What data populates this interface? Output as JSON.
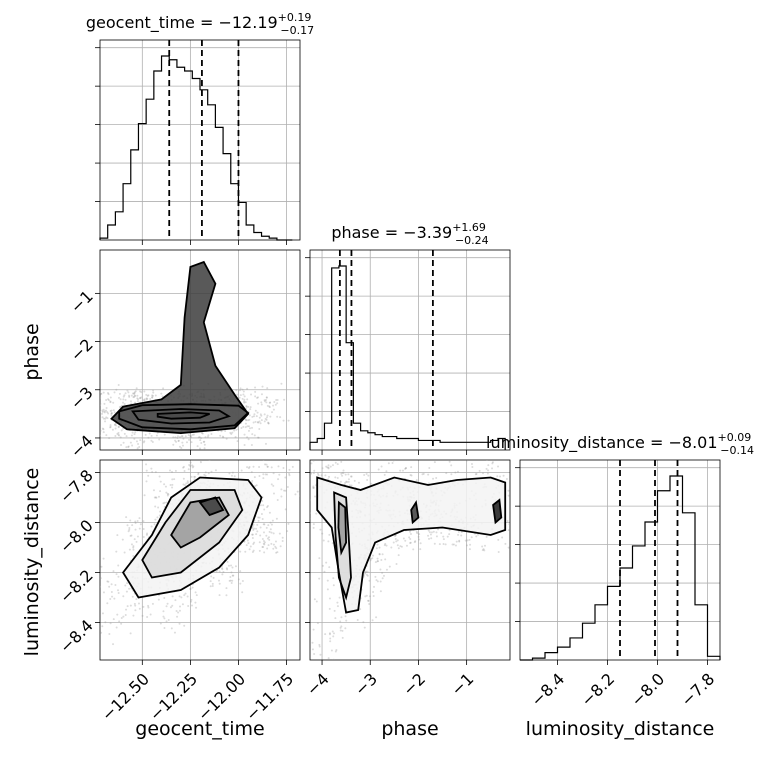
{
  "chart_data": {
    "type": "corner",
    "parameters": [
      "geocent_time",
      "phase",
      "luminosity_distance"
    ],
    "titles": [
      {
        "name": "geocent_time",
        "median": "−12.19",
        "plus": "+0.19",
        "minus": "−0.17"
      },
      {
        "name": "phase",
        "median": "−3.39",
        "plus": "+1.69",
        "minus": "−0.24"
      },
      {
        "name": "luminosity_distance",
        "median": "−8.01",
        "plus": "+0.09",
        "minus": "−0.14"
      }
    ],
    "axis_labels": {
      "x": [
        "geocent_time",
        "phase",
        "luminosity_distance"
      ],
      "y": [
        "phase",
        "luminosity_distance"
      ]
    },
    "ranges": {
      "geocent_time": [
        -12.72,
        -11.68
      ],
      "phase": [
        -4.25,
        -0.1
      ],
      "luminosity_distance": [
        -8.55,
        -7.75
      ]
    },
    "ticks": {
      "geocent_time": {
        "values": [
          -12.5,
          -12.25,
          -12.0,
          -11.75
        ],
        "labels": [
          "−12.50",
          "−12.25",
          "−12.00",
          "−11.75"
        ]
      },
      "phase": {
        "values": [
          -4,
          -3,
          -2,
          -1
        ],
        "labels": [
          "−4",
          "−3",
          "−2",
          "−1"
        ]
      },
      "luminosity_distance": {
        "values": [
          -8.4,
          -8.2,
          -8.0,
          -7.8
        ],
        "labels": [
          "−8.4",
          "−8.2",
          "−8.0",
          "−7.8"
        ]
      }
    },
    "histograms": {
      "geocent_time": {
        "edges": [
          -12.72,
          -12.68,
          -12.64,
          -12.6,
          -12.56,
          -12.52,
          -12.48,
          -12.44,
          -12.4,
          -12.36,
          -12.32,
          -12.28,
          -12.24,
          -12.2,
          -12.16,
          -12.12,
          -12.08,
          -12.04,
          -12.0,
          -11.96,
          -11.92,
          -11.88,
          -11.84,
          -11.8,
          -11.76,
          -11.72
        ],
        "counts": [
          0.01,
          0.08,
          0.15,
          0.3,
          0.48,
          0.62,
          0.75,
          0.9,
          0.98,
          0.96,
          0.92,
          0.9,
          0.86,
          0.8,
          0.72,
          0.6,
          0.46,
          0.3,
          0.2,
          0.08,
          0.04,
          0.02,
          0.01,
          0.0,
          0.0
        ],
        "quantiles": [
          -12.36,
          -12.19,
          -12.0
        ]
      },
      "phase": {
        "edges": [
          -4.25,
          -4.1,
          -3.95,
          -3.8,
          -3.65,
          -3.5,
          -3.35,
          -3.2,
          -3.05,
          -2.9,
          -2.75,
          -2.6,
          -2.45,
          -2.3,
          -2.15,
          -2.0,
          -1.85,
          -1.7,
          -1.55,
          -1.4,
          -1.25,
          -1.1,
          -0.95,
          -0.8,
          -0.65,
          -0.5,
          -0.35,
          -0.2
        ],
        "counts": [
          0.04,
          0.06,
          0.14,
          0.95,
          0.96,
          0.56,
          0.14,
          0.1,
          0.09,
          0.08,
          0.07,
          0.07,
          0.06,
          0.06,
          0.06,
          0.05,
          0.05,
          0.05,
          0.04,
          0.04,
          0.04,
          0.04,
          0.04,
          0.04,
          0.04,
          0.05,
          0.06
        ],
        "quantiles": [
          -3.63,
          -3.39,
          -1.7
        ]
      },
      "luminosity_distance": {
        "edges": [
          -8.55,
          -8.5,
          -8.45,
          -8.4,
          -8.35,
          -8.3,
          -8.25,
          -8.2,
          -8.15,
          -8.1,
          -8.05,
          -8.0,
          -7.95,
          -7.9,
          -7.85,
          -7.8,
          -7.75
        ],
        "counts": [
          0.0,
          0.01,
          0.04,
          0.07,
          0.12,
          0.2,
          0.3,
          0.4,
          0.5,
          0.62,
          0.75,
          0.92,
          1.0,
          0.8,
          0.3,
          0.02
        ],
        "quantiles": [
          -8.15,
          -8.01,
          -7.92
        ]
      }
    },
    "density_2d": [
      {
        "x": "geocent_time",
        "y": "phase",
        "contours": [
          [
            [
              -12.62,
              -3.45
            ],
            [
              -12.5,
              -3.32
            ],
            [
              -12.25,
              -3.3
            ],
            [
              -12.0,
              -3.33
            ],
            [
              -11.95,
              -3.48
            ],
            [
              -12.02,
              -3.74
            ],
            [
              -12.25,
              -3.82
            ],
            [
              -12.5,
              -3.78
            ],
            [
              -12.62,
              -3.6
            ]
          ],
          [
            [
              -12.55,
              -3.45
            ],
            [
              -12.3,
              -3.4
            ],
            [
              -12.1,
              -3.43
            ],
            [
              -12.05,
              -3.55
            ],
            [
              -12.15,
              -3.68
            ],
            [
              -12.35,
              -3.7
            ],
            [
              -12.52,
              -3.62
            ]
          ],
          [
            [
              -12.42,
              -3.5
            ],
            [
              -12.25,
              -3.47
            ],
            [
              -12.15,
              -3.5
            ],
            [
              -12.2,
              -3.58
            ],
            [
              -12.35,
              -3.6
            ],
            [
              -12.42,
              -3.56
            ]
          ],
          [
            [
              -12.6,
              -3.35
            ],
            [
              -12.4,
              -3.2
            ],
            [
              -12.3,
              -2.9
            ],
            [
              -12.28,
              -1.5
            ],
            [
              -12.25,
              -0.45
            ],
            [
              -12.18,
              -0.35
            ],
            [
              -12.12,
              -0.8
            ],
            [
              -12.18,
              -1.6
            ],
            [
              -12.12,
              -2.5
            ],
            [
              -12.02,
              -3.1
            ],
            [
              -11.95,
              -3.5
            ],
            [
              -12.02,
              -3.8
            ],
            [
              -12.3,
              -3.9
            ],
            [
              -12.58,
              -3.82
            ],
            [
              -12.66,
              -3.6
            ]
          ]
        ]
      },
      {
        "x": "geocent_time",
        "y": "luminosity_distance",
        "contours": [
          [
            [
              -12.6,
              -8.2
            ],
            [
              -12.45,
              -8.05
            ],
            [
              -12.35,
              -7.9
            ],
            [
              -12.2,
              -7.82
            ],
            [
              -11.95,
              -7.83
            ],
            [
              -11.88,
              -7.9
            ],
            [
              -11.95,
              -8.05
            ],
            [
              -12.1,
              -8.18
            ],
            [
              -12.3,
              -8.27
            ],
            [
              -12.52,
              -8.3
            ]
          ],
          [
            [
              -12.5,
              -8.15
            ],
            [
              -12.38,
              -8.0
            ],
            [
              -12.25,
              -7.87
            ],
            [
              -12.02,
              -7.87
            ],
            [
              -11.98,
              -7.95
            ],
            [
              -12.1,
              -8.08
            ],
            [
              -12.3,
              -8.2
            ],
            [
              -12.45,
              -8.22
            ]
          ],
          [
            [
              -12.35,
              -8.05
            ],
            [
              -12.25,
              -7.92
            ],
            [
              -12.1,
              -7.9
            ],
            [
              -12.05,
              -7.97
            ],
            [
              -12.2,
              -8.06
            ],
            [
              -12.3,
              -8.1
            ]
          ],
          [
            [
              -12.2,
              -7.92
            ],
            [
              -12.12,
              -7.9
            ],
            [
              -12.08,
              -7.95
            ],
            [
              -12.15,
              -7.97
            ]
          ]
        ]
      },
      {
        "x": "phase",
        "y": "luminosity_distance",
        "contours": [
          [
            [
              -4.1,
              -7.82
            ],
            [
              -3.6,
              -7.85
            ],
            [
              -3.2,
              -7.87
            ],
            [
              -2.5,
              -7.82
            ],
            [
              -1.8,
              -7.85
            ],
            [
              -1.2,
              -7.83
            ],
            [
              -0.5,
              -7.82
            ],
            [
              -0.2,
              -7.84
            ],
            [
              -0.2,
              -8.03
            ],
            [
              -0.5,
              -8.05
            ],
            [
              -1.5,
              -8.02
            ],
            [
              -2.3,
              -8.03
            ],
            [
              -2.9,
              -8.08
            ],
            [
              -3.15,
              -8.2
            ],
            [
              -3.25,
              -8.35
            ],
            [
              -3.5,
              -8.36
            ],
            [
              -3.65,
              -8.2
            ],
            [
              -3.8,
              -8.02
            ],
            [
              -4.1,
              -7.95
            ]
          ],
          [
            [
              -3.75,
              -7.88
            ],
            [
              -3.5,
              -7.9
            ],
            [
              -3.45,
              -8.05
            ],
            [
              -3.4,
              -8.22
            ],
            [
              -3.5,
              -8.3
            ],
            [
              -3.65,
              -8.22
            ],
            [
              -3.72,
              -8.05
            ]
          ],
          [
            [
              -3.65,
              -7.92
            ],
            [
              -3.52,
              -7.94
            ],
            [
              -3.5,
              -8.08
            ],
            [
              -3.6,
              -8.12
            ],
            [
              -3.66,
              -8.02
            ]
          ],
          [
            [
              -2.15,
              -7.95
            ],
            [
              -2.05,
              -7.92
            ],
            [
              -2.0,
              -7.98
            ],
            [
              -2.12,
              -8.0
            ]
          ],
          [
            [
              -0.45,
              -7.93
            ],
            [
              -0.32,
              -7.91
            ],
            [
              -0.28,
              -7.98
            ],
            [
              -0.4,
              -8.0
            ]
          ]
        ]
      }
    ]
  }
}
